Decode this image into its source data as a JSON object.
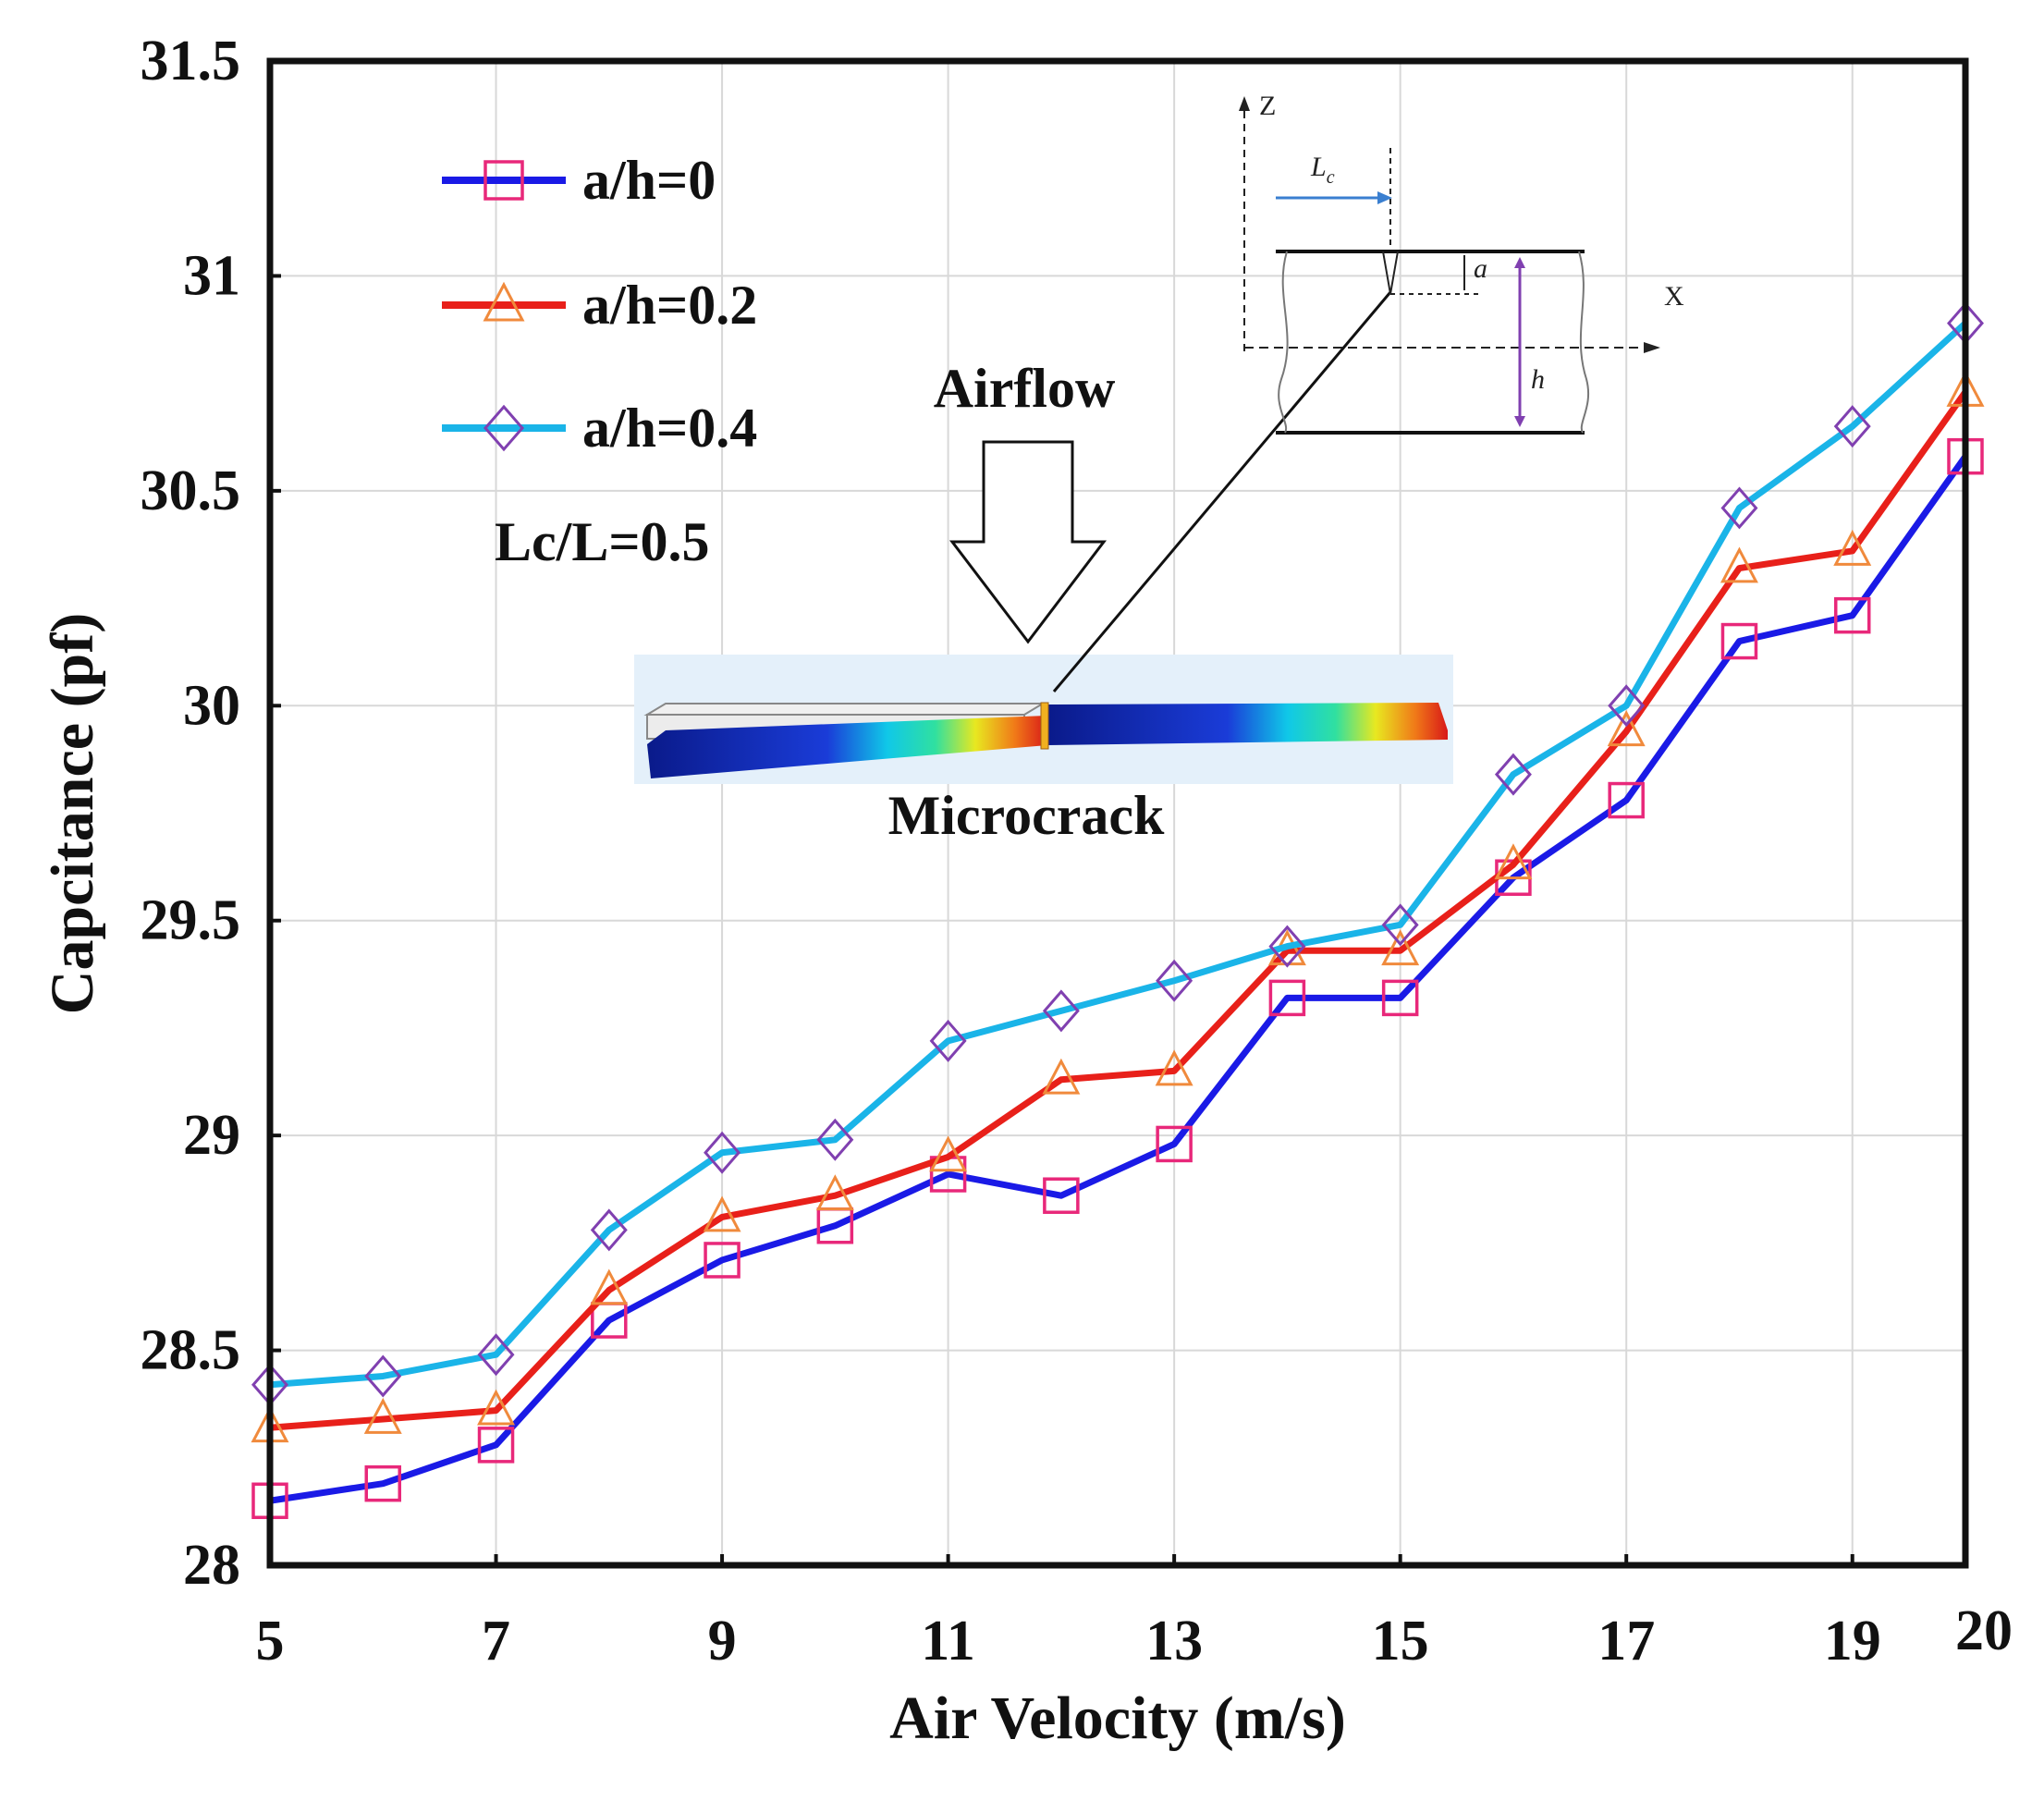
{
  "chart_data": {
    "type": "line",
    "title": "",
    "xlabel": "Air Velocity (m/s)",
    "ylabel": "Capcitance (pf)",
    "xlim": [
      5,
      20
    ],
    "ylim": [
      28,
      31.5
    ],
    "xticks": [
      5,
      7,
      9,
      11,
      13,
      15,
      17,
      19,
      20
    ],
    "yticks": [
      28,
      28.5,
      29,
      29.5,
      30,
      30.5,
      31,
      31.5
    ],
    "ytick_labels": [
      "28",
      "28.5",
      "29",
      "29.5",
      "30",
      "30.5",
      "31",
      "31.5"
    ],
    "grid": true,
    "legend_position": "top-left",
    "x": [
      5,
      6,
      7,
      8,
      9,
      10,
      11,
      12,
      13,
      14,
      15,
      16,
      17,
      18,
      19,
      20
    ],
    "series": [
      {
        "name": "a/h=0",
        "line_color": "#1a1ae6",
        "marker": "square",
        "marker_color": "#e8287a",
        "values": [
          28.15,
          28.19,
          28.28,
          28.57,
          28.71,
          28.79,
          28.91,
          28.86,
          28.98,
          29.32,
          29.32,
          29.6,
          29.78,
          30.15,
          30.21,
          30.58
        ]
      },
      {
        "name": "a/h=0.2",
        "line_color": "#e8201a",
        "marker": "triangle",
        "marker_color": "#f08a3c",
        "values": [
          28.32,
          28.34,
          28.36,
          28.64,
          28.81,
          28.86,
          28.95,
          29.13,
          29.15,
          29.43,
          29.43,
          29.63,
          29.94,
          30.32,
          30.36,
          30.73
        ]
      },
      {
        "name": "a/h=0.4",
        "line_color": "#1ab4e8",
        "marker": "diamond",
        "marker_color": "#8040b0",
        "values": [
          28.42,
          28.44,
          28.49,
          28.78,
          28.96,
          28.99,
          29.22,
          29.29,
          29.36,
          29.44,
          29.49,
          29.84,
          30.0,
          30.46,
          30.65,
          30.89
        ]
      }
    ],
    "annotations": {
      "param": "Lc/L=0.5",
      "airflow": "Airflow",
      "microcrack": "Microcrack",
      "diagram_z": "Z",
      "diagram_x": "X",
      "diagram_lc": "L",
      "diagram_lc_sub": "c",
      "diagram_a": "a",
      "diagram_h": "h"
    }
  }
}
